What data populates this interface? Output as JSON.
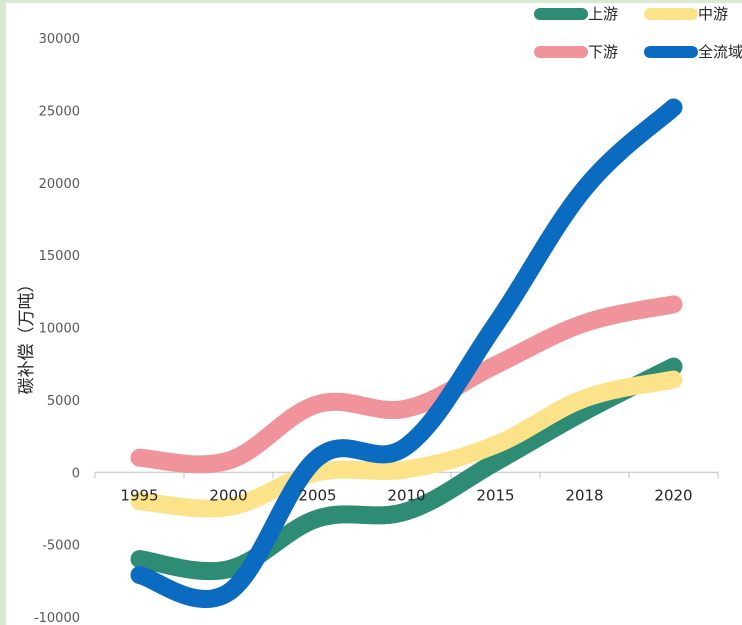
{
  "chart_data": {
    "type": "line",
    "title": "",
    "xlabel": "",
    "ylabel": "碳补偿（万吨）",
    "categories": [
      "1995",
      "2000",
      "2005",
      "2010",
      "2015",
      "2018",
      "2020"
    ],
    "ylim": [
      -10000,
      30000
    ],
    "yticks": [
      "30000",
      "25000",
      "20000",
      "15000",
      "10000",
      "5000",
      "0",
      "-5000",
      "-10000"
    ],
    "grid": false,
    "legend_position": "top-right",
    "series": [
      {
        "name": "上游",
        "color": "#2e8b74",
        "values": [
          -6000,
          -6700,
          -3200,
          -2700,
          700,
          4200,
          7300
        ]
      },
      {
        "name": "中游",
        "color": "#fce38a",
        "values": [
          -2000,
          -2400,
          0,
          200,
          1900,
          5100,
          6400
        ]
      },
      {
        "name": "下游",
        "color": "#f0939b",
        "values": [
          1000,
          800,
          4700,
          4400,
          7400,
          10300,
          11600
        ]
      },
      {
        "name": "全流域",
        "color": "#0a6bc0",
        "values": [
          -7100,
          -8300,
          1000,
          1800,
          10200,
          19600,
          25200
        ]
      }
    ]
  }
}
